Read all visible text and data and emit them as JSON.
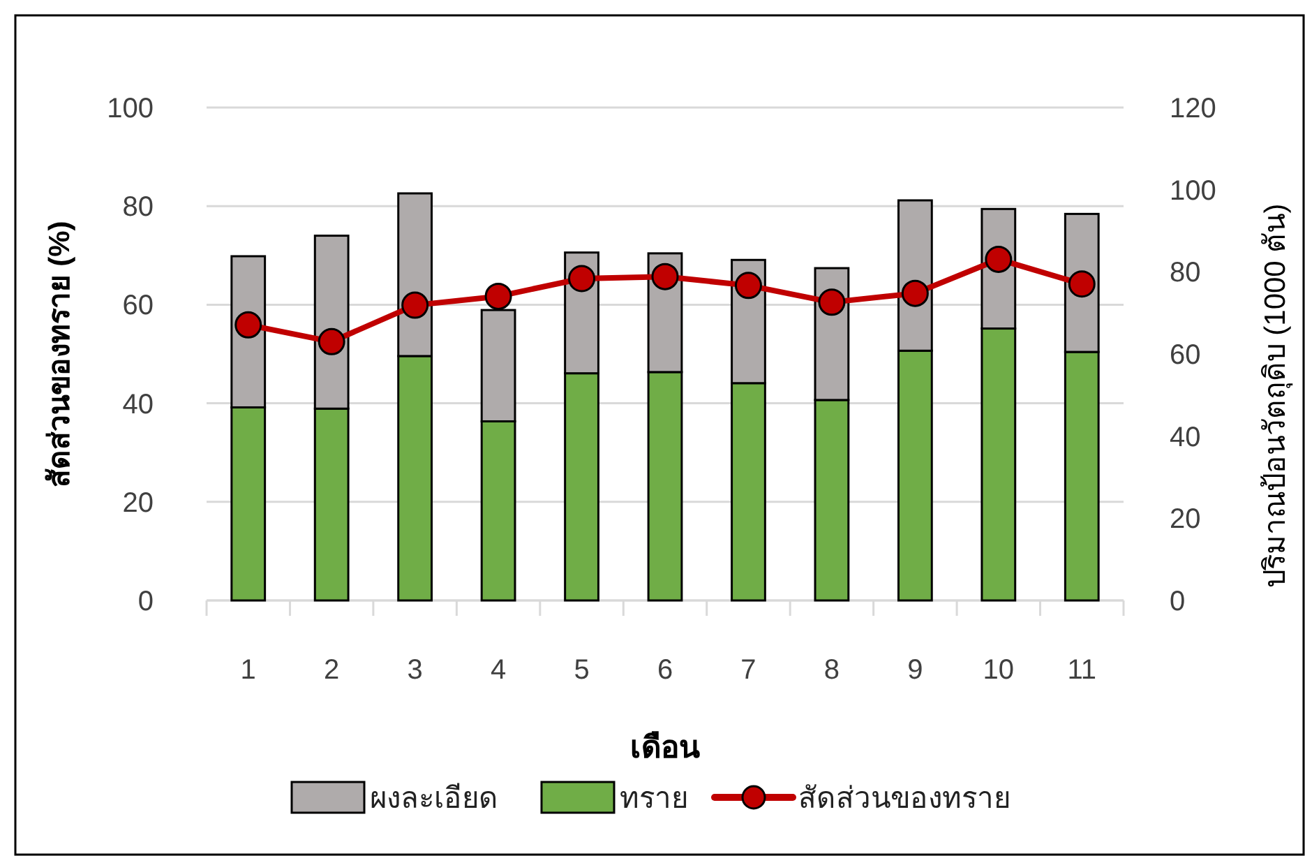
{
  "chart_data": {
    "type": "bar",
    "stacked": true,
    "xlabel": "เดือน",
    "ylabel": "สัดส่วนของทราย (%)",
    "y2label": "ปริมาณป้อนวัตถุดิบ (1000 ตัน)",
    "categories": [
      "1",
      "2",
      "3",
      "4",
      "5",
      "6",
      "7",
      "8",
      "9",
      "10",
      "11"
    ],
    "series": [
      {
        "name": "ทราย",
        "color": "#70ad47",
        "axis": "y2",
        "values": [
          47.0,
          46.7,
          59.5,
          43.6,
          55.3,
          55.6,
          52.9,
          48.8,
          60.8,
          66.2,
          60.5
        ]
      },
      {
        "name": "ผงละเอียด",
        "color": "#afabab",
        "axis": "y2",
        "values": [
          36.8,
          42.1,
          39.6,
          27.1,
          29.4,
          28.9,
          30.0,
          32.1,
          36.6,
          29.1,
          33.6
        ]
      },
      {
        "name": "สัดส่วนของทราย",
        "type": "line",
        "color": "#c00000",
        "marker": "circle",
        "values": [
          55.9,
          52.5,
          59.9,
          61.7,
          65.3,
          65.7,
          63.9,
          60.5,
          62.3,
          69.2,
          64.2
        ]
      }
    ],
    "ylim": [
      0,
      100
    ],
    "yticks": [
      0,
      20,
      40,
      60,
      80,
      100
    ],
    "y2lim": [
      0,
      120
    ],
    "y2ticks": [
      0,
      20,
      40,
      60,
      80,
      100,
      120
    ],
    "grid": "y",
    "legend": "bottom"
  }
}
